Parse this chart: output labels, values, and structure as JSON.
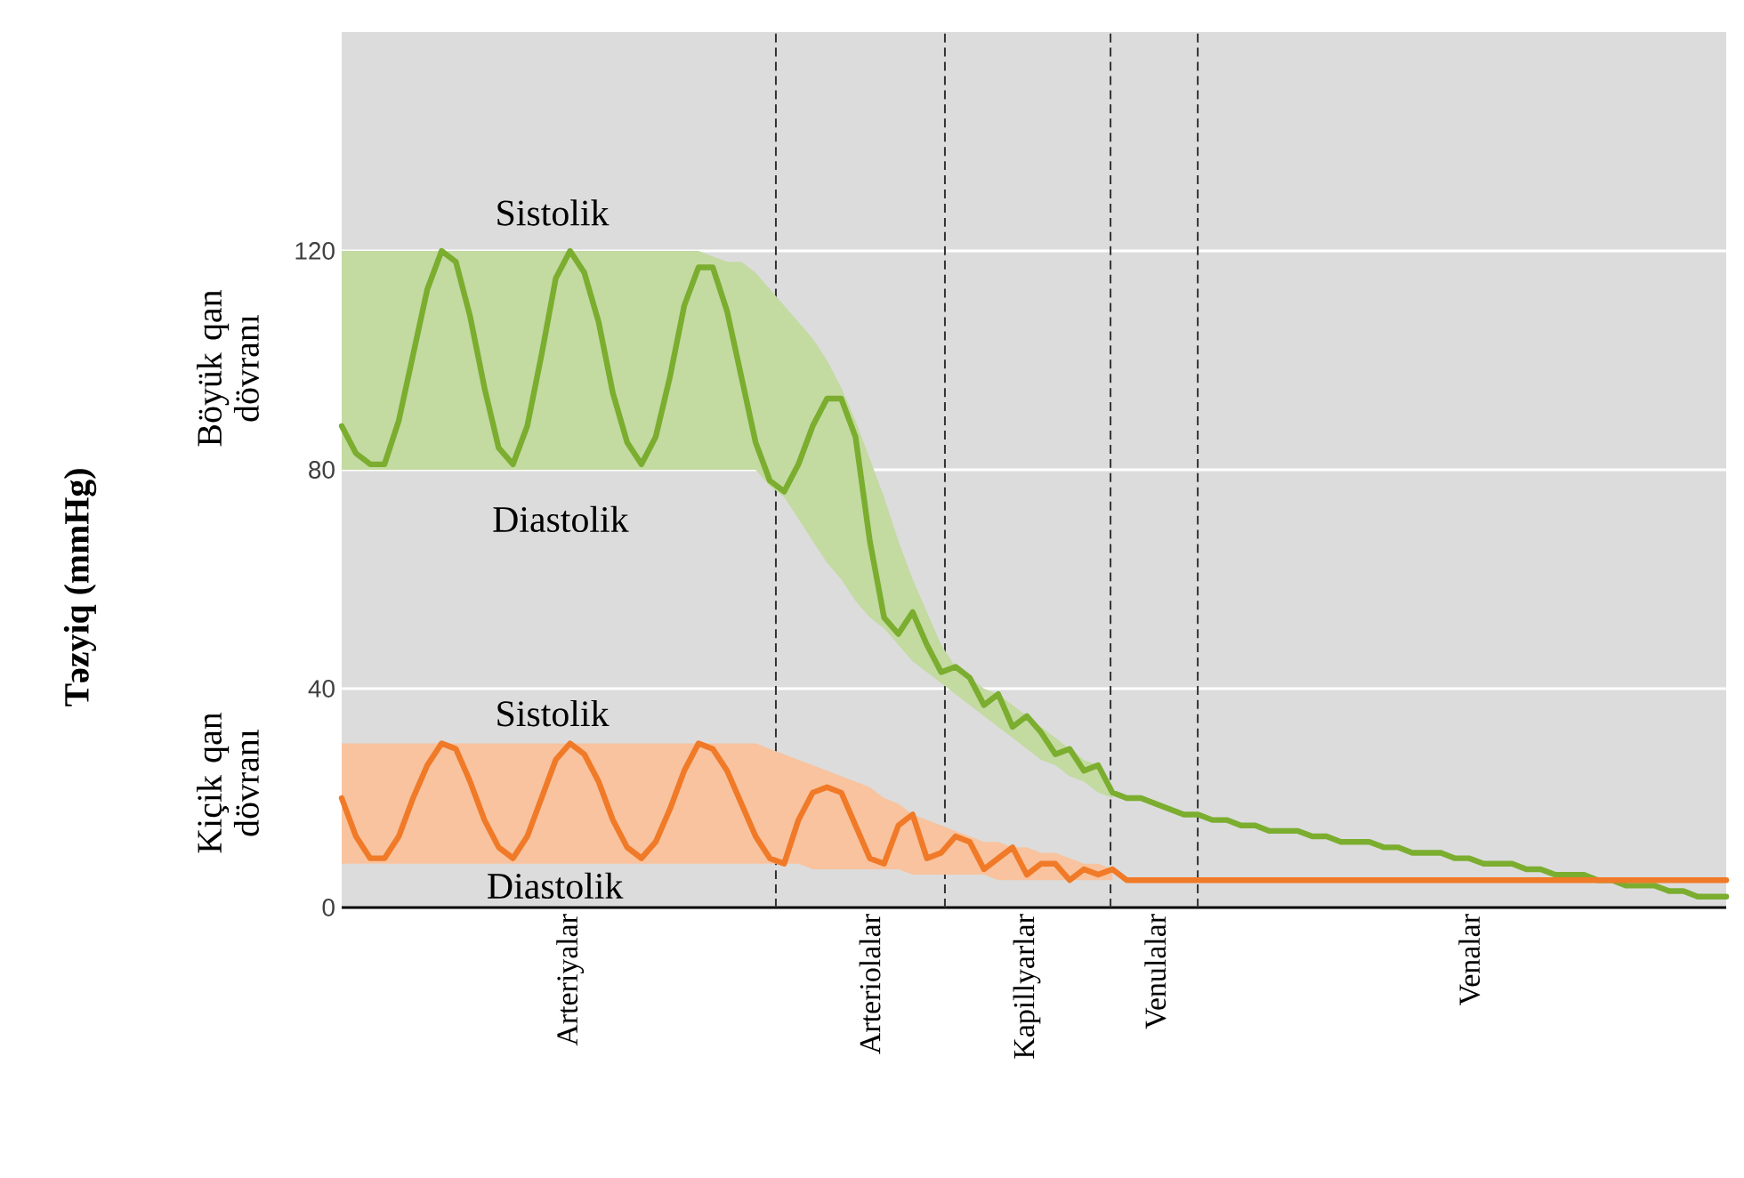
{
  "chart_data": {
    "type": "line",
    "categories": [
      null,
      null,
      null,
      null,
      null,
      null,
      null,
      null,
      null,
      null,
      null,
      null,
      null,
      null,
      null,
      null,
      "Arteriyalar",
      null,
      null,
      null,
      null,
      null,
      null,
      null,
      null,
      null,
      null,
      null,
      null,
      null,
      null,
      null,
      null,
      null,
      null,
      null,
      null,
      "Arteriolalar",
      null,
      null,
      null,
      null,
      null,
      null,
      null,
      null,
      null,
      null,
      "Kapillyarlar",
      null,
      null,
      null,
      null,
      null,
      null,
      null,
      null,
      "Venulalar",
      null,
      null,
      null,
      null,
      null,
      null,
      null,
      null,
      null,
      null,
      null,
      null,
      null,
      null,
      null,
      null,
      null,
      null,
      null,
      null,
      null,
      "Venalar",
      null,
      null,
      null,
      null,
      null,
      null,
      null,
      null,
      null,
      null,
      null,
      null,
      null,
      null,
      null,
      null,
      null,
      null
    ],
    "ylim": [
      0,
      160
    ],
    "yticks": [
      0,
      40,
      80,
      120
    ],
    "grid": "y",
    "series": [
      {
        "color": "#7bad2f",
        "values": [
          88,
          83,
          81,
          81,
          89,
          101,
          113,
          120,
          118,
          108,
          95,
          84,
          81,
          88,
          101,
          115,
          120,
          116,
          107,
          94,
          85,
          81,
          86,
          97,
          110,
          117,
          117,
          109,
          97,
          85,
          78,
          76,
          81,
          88,
          93,
          93,
          86,
          67,
          53,
          50,
          54,
          48,
          43,
          44,
          42,
          37,
          39,
          33,
          35,
          32,
          28,
          29,
          25,
          26,
          21,
          20,
          20,
          19,
          18,
          17,
          17,
          16,
          16,
          15,
          15,
          14,
          14,
          14,
          13,
          13,
          12,
          12,
          12,
          11,
          11,
          10,
          10,
          10,
          9,
          9,
          8,
          8,
          8,
          7,
          7,
          6,
          6,
          6,
          5,
          5,
          4,
          4,
          4,
          3,
          3,
          2,
          2,
          2
        ],
        "upper": [
          120,
          120,
          120,
          120,
          120,
          120,
          120,
          120,
          120,
          120,
          120,
          120,
          120,
          120,
          120,
          120,
          120,
          120,
          120,
          120,
          120,
          120,
          120,
          120,
          120,
          120,
          119,
          118,
          118,
          116,
          113,
          110,
          107,
          104,
          100,
          95,
          89,
          82,
          75,
          67,
          60,
          54,
          48,
          44,
          42,
          40,
          39,
          37,
          35,
          33,
          31,
          29,
          27,
          26,
          22,
          null,
          null,
          null,
          null,
          null,
          null,
          null,
          null,
          null,
          null,
          null,
          null,
          null,
          null,
          null,
          null,
          null,
          null,
          null,
          null,
          null,
          null,
          null,
          null,
          null,
          null,
          null,
          null,
          null,
          null,
          null,
          null,
          null,
          null,
          null,
          null,
          null,
          null,
          null,
          null,
          null,
          null,
          null
        ],
        "lower": [
          80,
          80,
          80,
          80,
          80,
          80,
          80,
          80,
          80,
          80,
          80,
          80,
          80,
          80,
          80,
          80,
          80,
          80,
          80,
          80,
          80,
          80,
          80,
          80,
          80,
          80,
          80,
          80,
          80,
          80,
          77,
          75,
          71,
          67,
          63,
          60,
          56,
          53,
          51,
          48,
          45,
          43,
          41,
          39,
          37,
          35,
          33,
          31,
          29,
          27,
          26,
          24,
          23,
          21,
          20,
          null,
          null,
          null,
          null,
          null,
          null,
          null,
          null,
          null,
          null,
          null,
          null,
          null,
          null,
          null,
          null,
          null,
          null,
          null,
          null,
          null,
          null,
          null,
          null,
          null,
          null,
          null,
          null,
          null,
          null,
          null,
          null,
          null,
          null,
          null,
          null,
          null,
          null,
          null,
          null,
          null,
          null,
          null
        ]
      },
      {
        "color": "#f07a28",
        "values": [
          20,
          13,
          9,
          9,
          13,
          20,
          26,
          30,
          29,
          23,
          16,
          11,
          9,
          13,
          20,
          27,
          30,
          28,
          23,
          16,
          11,
          9,
          12,
          18,
          25,
          30,
          29,
          25,
          19,
          13,
          9,
          8,
          16,
          21,
          22,
          21,
          15,
          9,
          8,
          15,
          17,
          9,
          10,
          13,
          12,
          7,
          9,
          11,
          6,
          8,
          8,
          5,
          7,
          6,
          7,
          5,
          5,
          5,
          5,
          5,
          5,
          5,
          5,
          5,
          5,
          5,
          5,
          5,
          5,
          5,
          5,
          5,
          5,
          5,
          5,
          5,
          5,
          5,
          5,
          5,
          5,
          5,
          5,
          5,
          5,
          5,
          5,
          5,
          5,
          5,
          5,
          5,
          5,
          5,
          5,
          5,
          5,
          5
        ],
        "upper": [
          30,
          30,
          30,
          30,
          30,
          30,
          30,
          30,
          30,
          30,
          30,
          30,
          30,
          30,
          30,
          30,
          30,
          30,
          30,
          30,
          30,
          30,
          30,
          30,
          30,
          30,
          30,
          30,
          30,
          30,
          29,
          28,
          27,
          26,
          25,
          24,
          23,
          22,
          20,
          19,
          17,
          16,
          15,
          14,
          13,
          12,
          12,
          11,
          11,
          10,
          10,
          9,
          8,
          8,
          7,
          null,
          null,
          null,
          null,
          null,
          null,
          null,
          null,
          null,
          null,
          null,
          null,
          null,
          null,
          null,
          null,
          null,
          null,
          null,
          null,
          null,
          null,
          null,
          null,
          null,
          null,
          null,
          null,
          null,
          null,
          null,
          null,
          null,
          null,
          null,
          null,
          null,
          null,
          null,
          null,
          null,
          null,
          null
        ],
        "lower": [
          8,
          8,
          8,
          8,
          8,
          8,
          8,
          8,
          8,
          8,
          8,
          8,
          8,
          8,
          8,
          8,
          8,
          8,
          8,
          8,
          8,
          8,
          8,
          8,
          8,
          8,
          8,
          8,
          8,
          8,
          8,
          8,
          8,
          7,
          7,
          7,
          7,
          7,
          7,
          7,
          6,
          6,
          6,
          6,
          6,
          6,
          5,
          5,
          5,
          5,
          5,
          5,
          5,
          5,
          5,
          null,
          null,
          null,
          null,
          null,
          null,
          null,
          null,
          null,
          null,
          null,
          null,
          null,
          null,
          null,
          null,
          null,
          null,
          null,
          null,
          null,
          null,
          null,
          null,
          null,
          null,
          null,
          null,
          null,
          null,
          null,
          null,
          null,
          null,
          null,
          null,
          null,
          null,
          null,
          null,
          null,
          null,
          null
        ]
      }
    ],
    "annotations": [
      "Sistolik",
      "Diastolik",
      "Sistolik",
      "Diastolik",
      "Böyük qan dövranı",
      "Kiçik qan dövranı",
      "Təzyiq (mmHg)"
    ]
  }
}
